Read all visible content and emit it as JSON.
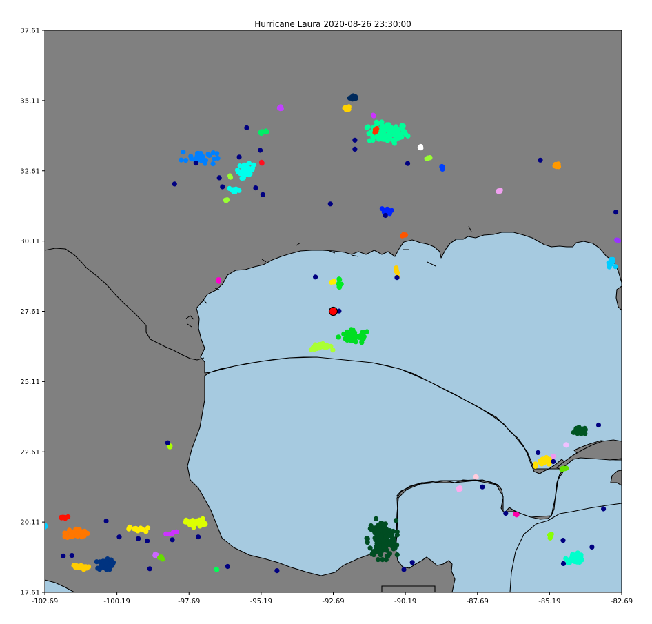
{
  "chart_data": {
    "type": "scatter",
    "title": "Hurricane Laura 2020-08-26 23:30:00",
    "xlabel": "",
    "ylabel": "",
    "xlim": [
      -102.69,
      -82.69
    ],
    "ylim": [
      17.61,
      37.61
    ],
    "xticks": [
      "-102.69",
      "-100.19",
      "-97.69",
      "-95.19",
      "-92.69",
      "-90.19",
      "-87.69",
      "-85.19",
      "-82.69"
    ],
    "yticks": [
      "37.61",
      "35.11",
      "32.61",
      "30.11",
      "27.61",
      "25.11",
      "22.61",
      "20.11",
      "17.61"
    ],
    "grid": false,
    "legend": "none",
    "colors": {
      "land": "#808080",
      "water": "#a6cae0",
      "coast": "#000000",
      "hurricane": "#ff0000"
    },
    "hurricane_center": {
      "x": -92.69,
      "y": 27.61
    },
    "clusters": [
      {
        "color": "#002a5c",
        "x": -91.97,
        "y": 35.22,
        "sx": 0.12,
        "sy": 0.07,
        "n": 14
      },
      {
        "color": "#ffd200",
        "x": -92.22,
        "y": 34.85,
        "sx": 0.1,
        "sy": 0.05,
        "n": 8
      },
      {
        "color": "#c040ff",
        "x": -94.5,
        "y": 34.83,
        "sx": 0.06,
        "sy": 0.05,
        "n": 4
      },
      {
        "color": "#00ee66",
        "x": -95.08,
        "y": 33.98,
        "sx": 0.14,
        "sy": 0.05,
        "n": 8
      },
      {
        "color": "#00ff99",
        "x": -90.8,
        "y": 33.95,
        "sx": 0.55,
        "sy": 0.3,
        "n": 90
      },
      {
        "color": "#ff3000",
        "x": -91.25,
        "y": 34.05,
        "sx": 0.08,
        "sy": 0.07,
        "n": 12
      },
      {
        "color": "#cc33ff",
        "x": -91.3,
        "y": 34.55,
        "sx": 0.02,
        "sy": 0.06,
        "n": 3
      },
      {
        "color": "#ffffff",
        "x": -89.65,
        "y": 33.45,
        "sx": 0.05,
        "sy": 0.04,
        "n": 4
      },
      {
        "color": "#99ff33",
        "x": -89.4,
        "y": 33.07,
        "sx": 0.09,
        "sy": 0.04,
        "n": 5
      },
      {
        "color": "#0040ff",
        "x": -88.9,
        "y": 32.72,
        "sx": 0.05,
        "sy": 0.07,
        "n": 8
      },
      {
        "color": "#ff9900",
        "x": -84.9,
        "y": 32.82,
        "sx": 0.08,
        "sy": 0.08,
        "n": 8
      },
      {
        "color": "#f0a0f0",
        "x": -86.96,
        "y": 31.89,
        "sx": 0.08,
        "sy": 0.04,
        "n": 6
      },
      {
        "color": "#0022ff",
        "x": -90.81,
        "y": 31.2,
        "sx": 0.14,
        "sy": 0.09,
        "n": 12
      },
      {
        "color": "#ff5500",
        "x": -90.26,
        "y": 30.33,
        "sx": 0.06,
        "sy": 0.03,
        "n": 4
      },
      {
        "color": "#9933ff",
        "x": -82.85,
        "y": 30.14,
        "sx": 0.05,
        "sy": 0.03,
        "n": 3
      },
      {
        "color": "#00ccff",
        "x": -83.05,
        "y": 29.32,
        "sx": 0.11,
        "sy": 0.1,
        "n": 12
      },
      {
        "color": "#0080ff",
        "x": -97.35,
        "y": 33.1,
        "sx": 0.5,
        "sy": 0.25,
        "n": 28
      },
      {
        "color": "#00ffee",
        "x": -95.72,
        "y": 32.61,
        "sx": 0.22,
        "sy": 0.2,
        "n": 40
      },
      {
        "color": "#00ffee",
        "x": -96.1,
        "y": 31.92,
        "sx": 0.18,
        "sy": 0.08,
        "n": 14
      },
      {
        "color": "#ff1020",
        "x": -95.16,
        "y": 32.92,
        "sx": 0.03,
        "sy": 0.03,
        "n": 3
      },
      {
        "color": "#99ff33",
        "x": -96.3,
        "y": 32.38,
        "sx": 0.05,
        "sy": 0.04,
        "n": 3
      },
      {
        "color": "#99ff33",
        "x": -96.37,
        "y": 31.57,
        "sx": 0.06,
        "sy": 0.02,
        "n": 3
      },
      {
        "color": "#ff00cc",
        "x": -96.65,
        "y": 28.7,
        "sx": 0.04,
        "sy": 0.04,
        "n": 3
      },
      {
        "color": "#ffd000",
        "x": -90.49,
        "y": 28.98,
        "sx": 0.04,
        "sy": 0.15,
        "n": 7
      },
      {
        "color": "#ffee00",
        "x": -92.69,
        "y": 28.65,
        "sx": 0.07,
        "sy": 0.05,
        "n": 4
      },
      {
        "color": "#00ee22",
        "x": -92.5,
        "y": 28.6,
        "sx": 0.08,
        "sy": 0.12,
        "n": 8
      },
      {
        "color": "#aaff33",
        "x": -93.1,
        "y": 26.35,
        "sx": 0.3,
        "sy": 0.09,
        "n": 30
      },
      {
        "color": "#00dd22",
        "x": -91.95,
        "y": 26.7,
        "sx": 0.45,
        "sy": 0.2,
        "n": 50
      },
      {
        "color": "#005522",
        "x": -84.12,
        "y": 23.35,
        "sx": 0.18,
        "sy": 0.1,
        "n": 30
      },
      {
        "color": "#ffe000",
        "x": -85.35,
        "y": 22.25,
        "sx": 0.25,
        "sy": 0.12,
        "n": 22
      },
      {
        "color": "#f0c0ff",
        "x": -84.62,
        "y": 22.85,
        "sx": 0.06,
        "sy": 0.02,
        "n": 3
      },
      {
        "color": "#ee99ee",
        "x": -85.06,
        "y": 22.45,
        "sx": 0.03,
        "sy": 0.03,
        "n": 2
      },
      {
        "color": "#66dd00",
        "x": -84.7,
        "y": 22.0,
        "sx": 0.07,
        "sy": 0.06,
        "n": 6
      },
      {
        "color": "#ffccdd",
        "x": -87.73,
        "y": 21.72,
        "sx": 0.03,
        "sy": 0.03,
        "n": 3
      },
      {
        "color": "#ffaaee",
        "x": -88.3,
        "y": 21.3,
        "sx": 0.05,
        "sy": 0.04,
        "n": 4
      },
      {
        "color": "#ff00aa",
        "x": -86.34,
        "y": 20.38,
        "sx": 0.03,
        "sy": 0.02,
        "n": 3
      },
      {
        "color": "#88ff00",
        "x": -85.15,
        "y": 19.6,
        "sx": 0.04,
        "sy": 0.07,
        "n": 5
      },
      {
        "color": "#00ffcc",
        "x": -84.3,
        "y": 18.83,
        "sx": 0.25,
        "sy": 0.14,
        "n": 36
      },
      {
        "color": "#004d22",
        "x": -91.0,
        "y": 19.5,
        "sx": 0.4,
        "sy": 0.55,
        "n": 150
      },
      {
        "color": "#aaff00",
        "x": -98.35,
        "y": 22.85,
        "sx": 0.03,
        "sy": 0.05,
        "n": 3
      },
      {
        "color": "#ff1000",
        "x": -102.02,
        "y": 20.27,
        "sx": 0.15,
        "sy": 0.06,
        "n": 8
      },
      {
        "color": "#00ccff",
        "x": -102.68,
        "y": 19.95,
        "sx": 0.06,
        "sy": 0.05,
        "n": 5
      },
      {
        "color": "#ff7700",
        "x": -101.6,
        "y": 19.7,
        "sx": 0.3,
        "sy": 0.14,
        "n": 36
      },
      {
        "color": "#003380",
        "x": -100.6,
        "y": 18.6,
        "sx": 0.22,
        "sy": 0.15,
        "n": 55
      },
      {
        "color": "#ffcc00",
        "x": -101.5,
        "y": 18.5,
        "sx": 0.25,
        "sy": 0.07,
        "n": 18
      },
      {
        "color": "#ffee00",
        "x": -99.45,
        "y": 19.85,
        "sx": 0.3,
        "sy": 0.07,
        "n": 12
      },
      {
        "color": "#cc33ff",
        "x": -98.36,
        "y": 19.73,
        "sx": 0.18,
        "sy": 0.05,
        "n": 7
      },
      {
        "color": "#cc66ff",
        "x": -98.85,
        "y": 18.92,
        "sx": 0.07,
        "sy": 0.05,
        "n": 4
      },
      {
        "color": "#66dd00",
        "x": -98.65,
        "y": 18.85,
        "sx": 0.05,
        "sy": 0.08,
        "n": 6
      },
      {
        "color": "#ddff00",
        "x": -97.45,
        "y": 20.08,
        "sx": 0.28,
        "sy": 0.12,
        "n": 30
      },
      {
        "color": "#00ff55",
        "x": -96.74,
        "y": 18.44,
        "sx": 0.02,
        "sy": 0.04,
        "n": 2
      }
    ],
    "singles": [
      {
        "x": -95.69,
        "y": 34.14
      },
      {
        "x": -95.95,
        "y": 33.1
      },
      {
        "x": -95.22,
        "y": 33.34
      },
      {
        "x": -96.64,
        "y": 32.36
      },
      {
        "x": -96.53,
        "y": 32.04
      },
      {
        "x": -95.38,
        "y": 32.0
      },
      {
        "x": -95.13,
        "y": 31.76
      },
      {
        "x": -97.45,
        "y": 32.88
      },
      {
        "x": -98.19,
        "y": 32.14
      },
      {
        "x": -92.79,
        "y": 31.43
      },
      {
        "x": -91.94,
        "y": 33.7
      },
      {
        "x": -91.94,
        "y": 33.38
      },
      {
        "x": -90.88,
        "y": 31.02
      },
      {
        "x": -90.11,
        "y": 32.87
      },
      {
        "x": -85.51,
        "y": 32.99
      },
      {
        "x": -82.89,
        "y": 31.14
      },
      {
        "x": -93.31,
        "y": 28.83
      },
      {
        "x": -90.48,
        "y": 28.81
      },
      {
        "x": -92.49,
        "y": 27.62
      },
      {
        "x": -85.59,
        "y": 22.58
      },
      {
        "x": -85.06,
        "y": 22.26
      },
      {
        "x": -83.49,
        "y": 23.56
      },
      {
        "x": -87.52,
        "y": 21.36
      },
      {
        "x": -86.71,
        "y": 20.42
      },
      {
        "x": -83.32,
        "y": 20.58
      },
      {
        "x": -84.72,
        "y": 19.46
      },
      {
        "x": -83.72,
        "y": 19.22
      },
      {
        "x": -84.71,
        "y": 18.63
      },
      {
        "x": -89.95,
        "y": 18.67
      },
      {
        "x": -90.24,
        "y": 18.42
      },
      {
        "x": -94.64,
        "y": 18.38
      },
      {
        "x": -96.35,
        "y": 18.53
      },
      {
        "x": -97.37,
        "y": 19.58
      },
      {
        "x": -98.27,
        "y": 19.48
      },
      {
        "x": -99.14,
        "y": 19.44
      },
      {
        "x": -99.45,
        "y": 19.52
      },
      {
        "x": -99.05,
        "y": 18.45
      },
      {
        "x": -100.11,
        "y": 19.58
      },
      {
        "x": -100.56,
        "y": 20.15
      },
      {
        "x": -98.43,
        "y": 22.93
      },
      {
        "x": -101.75,
        "y": 18.92
      },
      {
        "x": -102.05,
        "y": 18.9
      }
    ]
  }
}
